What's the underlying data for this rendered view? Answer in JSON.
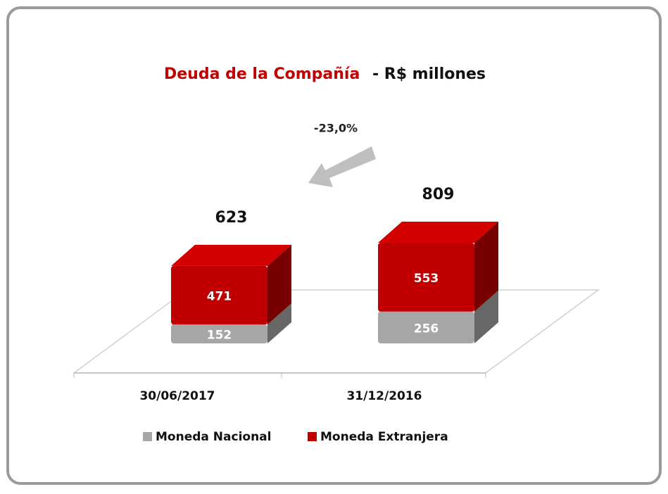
{
  "chart_data": {
    "type": "bar3d_stacked",
    "title": "Deuda de la Compañía",
    "title_unit": "- R$ millones",
    "annotation": "-23,0%",
    "categories": [
      "30/06/2017",
      "31/12/2016"
    ],
    "series": [
      {
        "name": "Moneda Nacional",
        "color": "#a6a6a6",
        "values": [
          152,
          256
        ]
      },
      {
        "name": "Moneda Extranjera",
        "color": "#c00000",
        "values": [
          471,
          553
        ]
      }
    ],
    "totals": [
      623,
      809
    ]
  }
}
